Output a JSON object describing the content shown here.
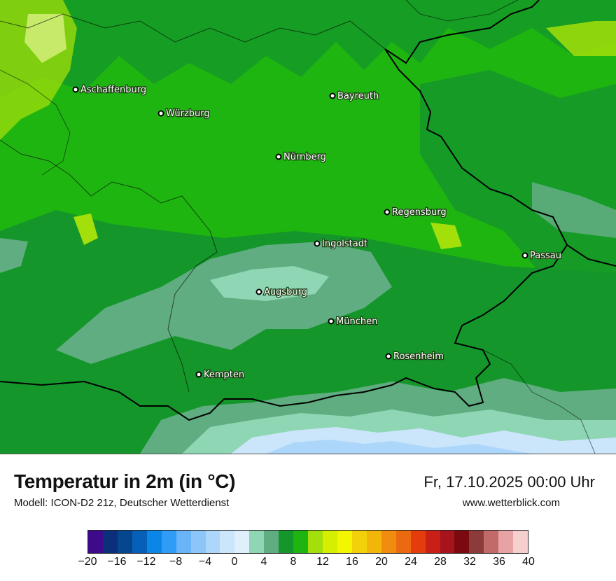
{
  "map": {
    "cities": [
      {
        "name": "Aschaffenburg"
      },
      {
        "name": "Würzburg"
      },
      {
        "name": "Bayreuth"
      },
      {
        "name": "Nürnberg"
      },
      {
        "name": "Regensburg"
      },
      {
        "name": "Ingolstadt"
      },
      {
        "name": "Passau"
      },
      {
        "name": "Augsburg"
      },
      {
        "name": "München"
      },
      {
        "name": "Rosenheim"
      },
      {
        "name": "Kempten"
      }
    ]
  },
  "header": {
    "title": "Temperatur in 2m (in °C)",
    "model": "Modell: ICON-D2 21z, Deutscher Wetterdienst",
    "datetime": "Fr, 17.10.2025 00:00 Uhr",
    "website": "www.wetterblick.com"
  },
  "legend": {
    "ticks": [
      "−20",
      "−16",
      "−12",
      "−8",
      "−4",
      "0",
      "4",
      "8",
      "12",
      "16",
      "20",
      "24",
      "28",
      "32",
      "36",
      "40"
    ],
    "colors": [
      "#3d0a8c",
      "#0b2f7a",
      "#05468e",
      "#0760b8",
      "#0b86e6",
      "#2f9cf5",
      "#68b4f7",
      "#8cc6f8",
      "#add7fa",
      "#cbe6fb",
      "#e0effc",
      "#8fd6b4",
      "#5fad80",
      "#14962a",
      "#1fb511",
      "#a3df0a",
      "#d4ef00",
      "#f2f600",
      "#f2d10a",
      "#f2b60a",
      "#f08c0e",
      "#ec6a0f",
      "#e53c0c",
      "#c81f16",
      "#a8141b",
      "#7a0a0f",
      "#8c3a3a",
      "#c26a6a",
      "#e7a3a3",
      "#f6cfcf"
    ]
  }
}
